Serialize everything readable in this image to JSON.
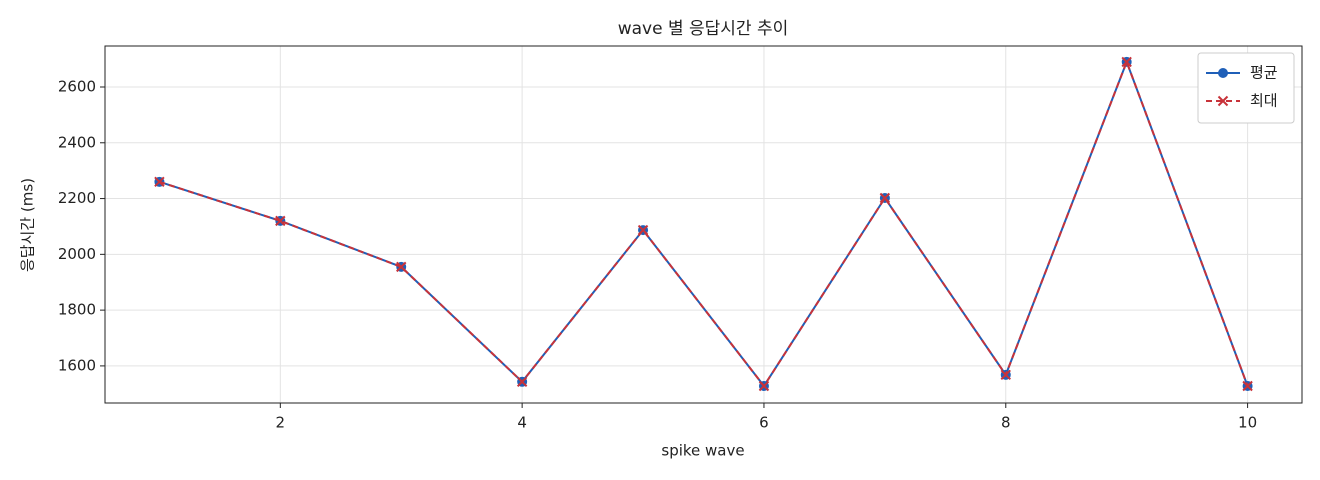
{
  "chart_data": {
    "type": "line",
    "title": "wave 별 응답시간 추이",
    "xlabel": "spike wave",
    "ylabel": "응답시간 (ms)",
    "x": [
      1,
      2,
      3,
      4,
      5,
      6,
      7,
      8,
      9,
      10
    ],
    "series": [
      {
        "name": "평균",
        "color": "#1f5fb8",
        "marker": "o",
        "linestyle": "solid",
        "values": [
          2260,
          2120,
          1955,
          1543,
          2087,
          1528,
          2202,
          1568,
          2690,
          1528
        ]
      },
      {
        "name": "최대",
        "color": "#c8333a",
        "marker": "x",
        "linestyle": "dashed",
        "values": [
          2260,
          2120,
          1955,
          1543,
          2087,
          1528,
          2202,
          1568,
          2690,
          1528
        ]
      }
    ],
    "xlim": [
      0.55,
      10.45
    ],
    "xticks": [
      2,
      4,
      6,
      8,
      10
    ],
    "ylim": [
      1467,
      2747
    ],
    "yticks": [
      1600,
      1800,
      2000,
      2200,
      2400,
      2600
    ],
    "grid": true,
    "legend": "upper right"
  }
}
